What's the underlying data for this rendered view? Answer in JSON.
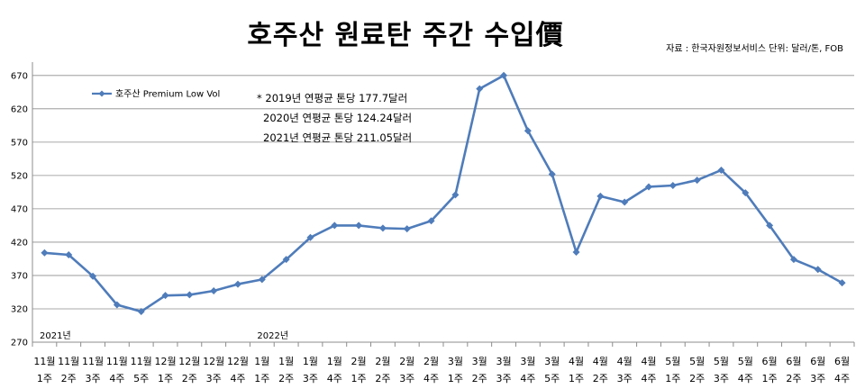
{
  "header": {
    "title": "호주산 원료탄  주간 수입價",
    "source": "자료 : 한국자원정보서비스  단위: 달러/톤, FOB"
  },
  "chart_data": {
    "type": "line",
    "title": "호주산 원료탄  주간 수입價",
    "xlabel": "",
    "ylabel": "",
    "ylim": [
      270,
      690
    ],
    "yticks": [
      270,
      320,
      370,
      420,
      470,
      520,
      570,
      620,
      670
    ],
    "grid": true,
    "legend_position": "top-left",
    "categories": [
      [
        "11월",
        "1주"
      ],
      [
        "11월",
        "2주"
      ],
      [
        "11월",
        "3주"
      ],
      [
        "11월",
        "4주"
      ],
      [
        "11월",
        "5주"
      ],
      [
        "12월",
        "1주"
      ],
      [
        "12월",
        "2주"
      ],
      [
        "12월",
        "3주"
      ],
      [
        "12월",
        "4주"
      ],
      [
        "1월",
        "1주"
      ],
      [
        "1월",
        "2주"
      ],
      [
        "1월",
        "3주"
      ],
      [
        "1월",
        "4주"
      ],
      [
        "2월",
        "1주"
      ],
      [
        "2월",
        "2주"
      ],
      [
        "2월",
        "3주"
      ],
      [
        "2월",
        "4주"
      ],
      [
        "3월",
        "1주"
      ],
      [
        "3월",
        "2주"
      ],
      [
        "3월",
        "3주"
      ],
      [
        "3월",
        "4주"
      ],
      [
        "3월",
        "5주"
      ],
      [
        "4월",
        "1주"
      ],
      [
        "4월",
        "2주"
      ],
      [
        "4월",
        "3주"
      ],
      [
        "4월",
        "4주"
      ],
      [
        "5월",
        "1주"
      ],
      [
        "5월",
        "2주"
      ],
      [
        "5월",
        "3주"
      ],
      [
        "5월",
        "4주"
      ],
      [
        "6월",
        "1주"
      ],
      [
        "6월",
        "2주"
      ],
      [
        "6월",
        "3주"
      ],
      [
        "6월",
        "4주"
      ]
    ],
    "series": [
      {
        "name": "호주산 Premium Low Vol",
        "color": "#4f7cba",
        "values": [
          404,
          401,
          369,
          326,
          316,
          340,
          341,
          347,
          357,
          364,
          394,
          427,
          445,
          445,
          441,
          440,
          452,
          491,
          650,
          670,
          587,
          522,
          405,
          489,
          480,
          503,
          505,
          513,
          528,
          494,
          445,
          394,
          379,
          359
        ]
      }
    ],
    "annotations": [
      "* 2019년 연평균 톤당 177.7달러",
      "2020년 연평균 톤당 124.24달러",
      "2021년 연평균 톤당 211.05달러"
    ],
    "year_labels": [
      {
        "text": "2021년",
        "index": 0
      },
      {
        "text": "2022년",
        "index": 9
      }
    ]
  }
}
